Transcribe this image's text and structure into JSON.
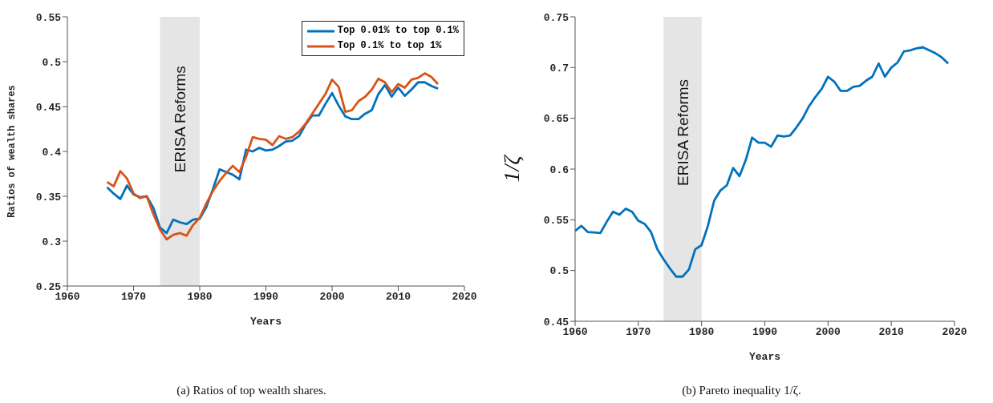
{
  "chart_data": [
    {
      "type": "line",
      "title": "(a) Ratios of top wealth shares.",
      "xlabel": "Years",
      "ylabel": "Ratios of wealth shares",
      "x": [
        1966,
        1967,
        1968,
        1969,
        1970,
        1971,
        1972,
        1973,
        1974,
        1975,
        1976,
        1977,
        1978,
        1979,
        1980,
        1981,
        1982,
        1983,
        1984,
        1985,
        1986,
        1987,
        1988,
        1989,
        1990,
        1991,
        1992,
        1993,
        1994,
        1995,
        1996,
        1997,
        1998,
        1999,
        2000,
        2001,
        2002,
        2003,
        2004,
        2005,
        2006,
        2007,
        2008,
        2009,
        2010,
        2011,
        2012,
        2013,
        2014,
        2015,
        2016
      ],
      "series": [
        {
          "name": "Top 0.01% to top 0.1%",
          "color": "#0072bd",
          "values": [
            0.36,
            0.353,
            0.347,
            0.362,
            0.352,
            0.349,
            0.35,
            0.337,
            0.315,
            0.309,
            0.324,
            0.321,
            0.319,
            0.324,
            0.325,
            0.338,
            0.358,
            0.38,
            0.377,
            0.374,
            0.369,
            0.402,
            0.4,
            0.404,
            0.401,
            0.402,
            0.406,
            0.411,
            0.412,
            0.417,
            0.43,
            0.44,
            0.44,
            0.453,
            0.465,
            0.451,
            0.439,
            0.436,
            0.436,
            0.442,
            0.446,
            0.464,
            0.474,
            0.461,
            0.471,
            0.462,
            0.469,
            0.477,
            0.477,
            0.473,
            0.47
          ]
        },
        {
          "name": "Top 0.1% to top 1%",
          "color": "#d95319",
          "values": [
            0.366,
            0.361,
            0.378,
            0.37,
            0.353,
            0.348,
            0.35,
            0.33,
            0.313,
            0.302,
            0.307,
            0.309,
            0.306,
            0.318,
            0.326,
            0.342,
            0.356,
            0.367,
            0.376,
            0.384,
            0.377,
            0.394,
            0.416,
            0.414,
            0.413,
            0.407,
            0.417,
            0.414,
            0.416,
            0.422,
            0.431,
            0.442,
            0.453,
            0.464,
            0.48,
            0.472,
            0.444,
            0.446,
            0.456,
            0.461,
            0.469,
            0.481,
            0.477,
            0.466,
            0.475,
            0.471,
            0.48,
            0.482,
            0.487,
            0.483,
            0.475
          ]
        }
      ],
      "xlim": [
        1960,
        2020
      ],
      "xticks": [
        1960,
        1970,
        1980,
        1990,
        2000,
        2010,
        2020
      ],
      "ylim": [
        0.25,
        0.55
      ],
      "yticks": [
        0.25,
        0.3,
        0.35,
        0.4,
        0.45,
        0.5,
        0.55
      ],
      "bands": [
        {
          "axis": "x",
          "from": 1974,
          "to": 1980,
          "label": "ERISA Reforms",
          "color": "#e5e5e5"
        }
      ],
      "legend": "top right",
      "grid": false,
      "line_style": "solid",
      "marker": "none"
    },
    {
      "type": "line",
      "title": "(b) Pareto inequality 1/ζ.",
      "xlabel": "Years",
      "ylabel": "1/ζ",
      "x": [
        1960,
        1961,
        1962,
        1963,
        1964,
        1965,
        1966,
        1967,
        1968,
        1969,
        1970,
        1971,
        1972,
        1973,
        1974,
        1975,
        1976,
        1977,
        1978,
        1979,
        1980,
        1981,
        1982,
        1983,
        1984,
        1985,
        1986,
        1987,
        1988,
        1989,
        1990,
        1991,
        1992,
        1993,
        1994,
        1995,
        1996,
        1997,
        1998,
        1999,
        2000,
        2001,
        2002,
        2003,
        2004,
        2005,
        2006,
        2007,
        2008,
        2009,
        2010,
        2011,
        2012,
        2013,
        2014,
        2015,
        2016,
        2017,
        2018,
        2019
      ],
      "series": [
        {
          "color": "#0072bd",
          "values": [
            0.539,
            0.544,
            0.538,
            0.5375,
            0.537,
            0.548,
            0.558,
            0.555,
            0.561,
            0.558,
            0.549,
            0.546,
            0.538,
            0.521,
            0.511,
            0.502,
            0.494,
            0.494,
            0.501,
            0.521,
            0.525,
            0.544,
            0.569,
            0.579,
            0.584,
            0.601,
            0.593,
            0.609,
            0.631,
            0.626,
            0.626,
            0.622,
            0.633,
            0.632,
            0.633,
            0.641,
            0.65,
            0.662,
            0.671,
            0.679,
            0.691,
            0.686,
            0.677,
            0.677,
            0.681,
            0.682,
            0.687,
            0.691,
            0.704,
            0.691,
            0.7,
            0.705,
            0.716,
            0.717,
            0.719,
            0.72,
            0.717,
            0.714,
            0.71,
            0.704
          ]
        }
      ],
      "xlim": [
        1960,
        2020
      ],
      "xticks": [
        1960,
        1970,
        1980,
        1990,
        2000,
        2010,
        2020
      ],
      "ylim": [
        0.45,
        0.75
      ],
      "yticks": [
        0.45,
        0.5,
        0.55,
        0.6,
        0.65,
        0.7,
        0.75
      ],
      "bands": [
        {
          "axis": "x",
          "from": 1974,
          "to": 1980,
          "label": "ERISA Reforms",
          "color": "#e5e5e5"
        }
      ],
      "legend": false,
      "grid": false,
      "line_style": "solid",
      "marker": "none"
    }
  ]
}
